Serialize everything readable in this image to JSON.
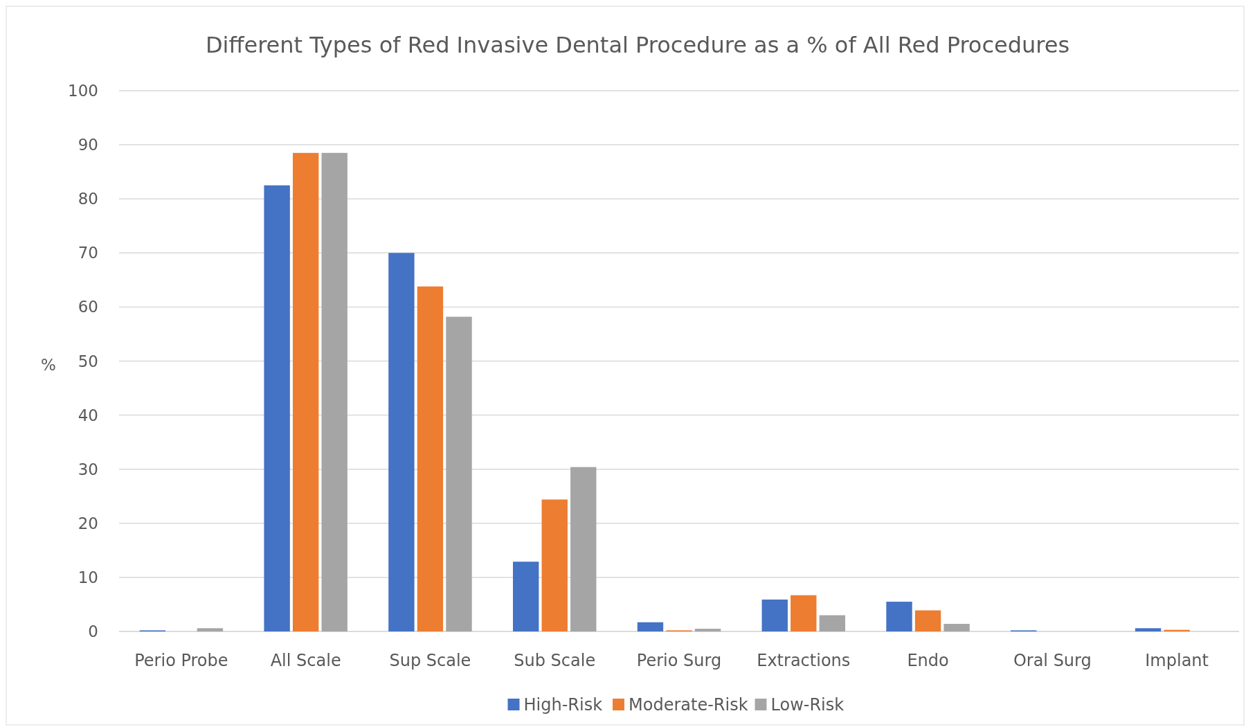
{
  "chart_data": {
    "type": "bar",
    "title": "Different Types of Red Invasive Dental Procedure as a % of All Red Procedures",
    "ylabel": "%",
    "categories": [
      "Perio Probe",
      "All Scale",
      "Sup Scale",
      "Sub Scale",
      "Perio Surg",
      "Extractions",
      "Endo",
      "Oral Surg",
      "Implant"
    ],
    "series": [
      {
        "name": "High-Risk",
        "color": "#4472c4",
        "values": [
          0.2,
          82.5,
          70,
          12.9,
          1.7,
          5.9,
          5.5,
          0.2,
          0.6
        ]
      },
      {
        "name": "Moderate-Risk",
        "color": "#ed7d31",
        "values": [
          0,
          88.5,
          63.8,
          24.4,
          0.2,
          6.7,
          3.9,
          0,
          0.3
        ]
      },
      {
        "name": "Low-Risk",
        "color": "#a5a5a5",
        "values": [
          0.6,
          88.5,
          58.2,
          30.4,
          0.5,
          3.0,
          1.4,
          0,
          0
        ]
      }
    ],
    "ylim": [
      0,
      100
    ],
    "yticks": [
      0,
      10,
      20,
      30,
      40,
      50,
      60,
      70,
      80,
      90,
      100
    ],
    "grid": "y",
    "legend": "bottom"
  }
}
